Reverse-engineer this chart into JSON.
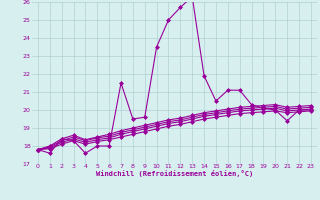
{
  "x": [
    0,
    1,
    2,
    3,
    4,
    5,
    6,
    7,
    8,
    9,
    10,
    11,
    12,
    13,
    14,
    15,
    16,
    17,
    18,
    19,
    20,
    21,
    22,
    23
  ],
  "line1": [
    17.8,
    17.6,
    18.4,
    18.3,
    17.6,
    18.0,
    18.0,
    21.5,
    19.5,
    19.6,
    23.5,
    25.0,
    25.7,
    26.3,
    21.9,
    20.5,
    21.1,
    21.1,
    20.3,
    20.1,
    20.0,
    19.4,
    20.0,
    20.0
  ],
  "line2": [
    17.8,
    17.85,
    18.1,
    18.3,
    18.1,
    18.25,
    18.35,
    18.5,
    18.65,
    18.8,
    18.95,
    19.1,
    19.2,
    19.35,
    19.5,
    19.6,
    19.7,
    19.8,
    19.85,
    19.9,
    19.95,
    19.85,
    19.9,
    19.95
  ],
  "line3": [
    17.8,
    17.9,
    18.2,
    18.4,
    18.2,
    18.35,
    18.45,
    18.65,
    18.8,
    18.95,
    19.1,
    19.25,
    19.35,
    19.5,
    19.65,
    19.75,
    19.85,
    19.95,
    20.0,
    20.05,
    20.1,
    19.95,
    20.0,
    20.05
  ],
  "line4": [
    17.8,
    17.95,
    18.3,
    18.5,
    18.3,
    18.45,
    18.55,
    18.75,
    18.9,
    19.05,
    19.2,
    19.35,
    19.45,
    19.6,
    19.75,
    19.85,
    19.95,
    20.05,
    20.1,
    20.15,
    20.2,
    20.05,
    20.1,
    20.15
  ],
  "line5": [
    17.8,
    18.0,
    18.4,
    18.6,
    18.35,
    18.5,
    18.65,
    18.85,
    19.0,
    19.15,
    19.3,
    19.45,
    19.55,
    19.7,
    19.85,
    19.95,
    20.05,
    20.15,
    20.2,
    20.25,
    20.3,
    20.15,
    20.2,
    20.25
  ],
  "line_color": "#990099",
  "bg_color": "#d8eff0",
  "grid_color": "#b0d0d4",
  "xlabel": "Windchill (Refroidissement éolien,°C)",
  "ylim": [
    17,
    26
  ],
  "xlim": [
    -0.5,
    23.5
  ],
  "yticks": [
    17,
    18,
    19,
    20,
    21,
    22,
    23,
    24,
    25,
    26
  ],
  "xticks": [
    0,
    1,
    2,
    3,
    4,
    5,
    6,
    7,
    8,
    9,
    10,
    11,
    12,
    13,
    14,
    15,
    16,
    17,
    18,
    19,
    20,
    21,
    22,
    23
  ],
  "markersize": 2,
  "linewidth": 0.8
}
